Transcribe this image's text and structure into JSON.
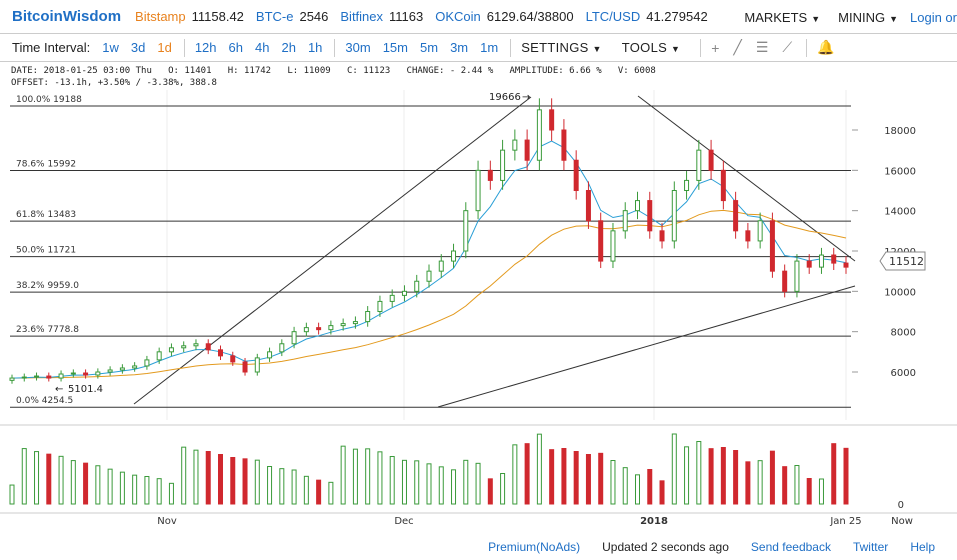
{
  "topbar": {
    "logo": "BitcoinWisdom",
    "markets": [
      {
        "name": "Bitstamp",
        "price": "11158.42",
        "highlight": true
      },
      {
        "name": "BTC-e",
        "price": "2546",
        "highlight": false
      },
      {
        "name": "Bitfinex",
        "price": "11163",
        "highlight": false
      },
      {
        "name": "OKCoin",
        "price": "6129.64/38800",
        "highlight": false
      },
      {
        "name": "LTC/USD",
        "price": "41.279542",
        "highlight": false
      }
    ],
    "menu_markets": "MARKETS",
    "menu_mining": "MINING",
    "login": "Login or"
  },
  "toolbar": {
    "label": "Time Interval:",
    "intervals": [
      "1w",
      "3d",
      "1d",
      "12h",
      "6h",
      "4h",
      "2h",
      "1h",
      "30m",
      "15m",
      "5m",
      "3m",
      "1m"
    ],
    "active_interval": "1d",
    "settings": "SETTINGS",
    "tools": "TOOLS"
  },
  "info": {
    "line1": "DATE: 2018-01-25 03:00 Thu   O: 11401   H: 11742   L: 11009   C: 11123   CHANGE: - 2.44 %   AMPLITUDE: 6.66 %   V: 6008",
    "line2": "OFFSET: -13.1h, +3.50% / -3.38%, 388.8"
  },
  "fib_levels": [
    {
      "label": "100.0% 19188",
      "price": 19188
    },
    {
      "label": "78.6% 15992",
      "price": 15992
    },
    {
      "label": "61.8% 13483",
      "price": 13483
    },
    {
      "label": "50.0% 11721",
      "price": 11721
    },
    {
      "label": "38.2% 9959.0",
      "price": 9959
    },
    {
      "label": "23.6% 7778.8",
      "price": 7778.8
    },
    {
      "label": "0.0% 4254.5",
      "price": 4254.5
    }
  ],
  "annotations": {
    "high": "19666",
    "low": "5101.4",
    "current_price": "11512"
  },
  "y_ticks": [
    "18000",
    "16000",
    "14000",
    "12000",
    "10000",
    "8000",
    "6000"
  ],
  "volume_tick": "0",
  "x_labels": [
    {
      "label": "Nov",
      "bold": false
    },
    {
      "label": "Dec",
      "bold": false
    },
    {
      "label": "2018",
      "bold": true
    },
    {
      "label": "Jan 25",
      "bold": false
    },
    {
      "label": "Now",
      "bold": false
    }
  ],
  "colors": {
    "up": "#3a9a3a",
    "down": "#d0282e",
    "ema_fast": "#2a9fd6",
    "ema_slow": "#e39a1e",
    "link": "#1f6fc5",
    "accent": "#e8821e"
  },
  "footer": {
    "premium": "Premium(NoAds)",
    "updated": "Updated 2 seconds ago",
    "feedback": "Send feedback",
    "twitter": "Twitter",
    "help": "Help"
  },
  "chart_data": {
    "type": "candlestick",
    "ohlc_close_series": [
      5700,
      5750,
      5800,
      5700,
      5900,
      5950,
      5850,
      6000,
      6100,
      6200,
      6300,
      6600,
      7000,
      7200,
      7300,
      7400,
      7100,
      6800,
      6500,
      6000,
      6700,
      7000,
      7400,
      8000,
      8200,
      8100,
      8300,
      8400,
      8500,
      9000,
      9500,
      9800,
      10000,
      10500,
      11000,
      11500,
      12000,
      14000,
      16000,
      15500,
      17000,
      17500,
      16500,
      19000,
      18000,
      16500,
      15000,
      13500,
      11500,
      13000,
      14000,
      14500,
      13000,
      12500,
      15000,
      15500,
      17000,
      16000,
      14500,
      13000,
      12500,
      13500,
      11000,
      10000,
      11500,
      11200,
      11800,
      11400,
      11200
    ],
    "ema_fast_desc": "short EMA",
    "ema_slow_desc": "long EMA"
  }
}
